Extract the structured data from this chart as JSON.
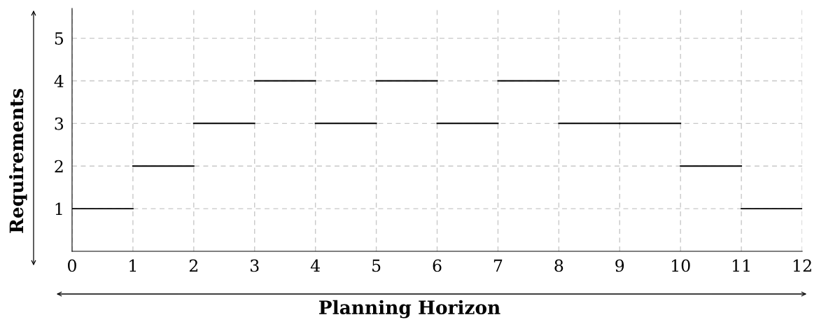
{
  "chart_data": {
    "type": "step",
    "xlabel": "Planning Horizon",
    "ylabel": "Requirements",
    "x": [
      0,
      1,
      2,
      3,
      4,
      5,
      6,
      7,
      8,
      9,
      10,
      11,
      12
    ],
    "series": [
      {
        "color": "#000000",
        "values": [
          1,
          2,
          3,
          4,
          3,
          4,
          3,
          4,
          3,
          3,
          2,
          1,
          1
        ]
      }
    ],
    "xlim": [
      0,
      12
    ],
    "ylim": [
      0,
      5.7
    ],
    "xticks": [
      0,
      1,
      2,
      3,
      4,
      5,
      6,
      7,
      8,
      9,
      10,
      11,
      12
    ],
    "yticks": [
      1,
      2,
      3,
      4,
      5
    ],
    "grid": true
  }
}
